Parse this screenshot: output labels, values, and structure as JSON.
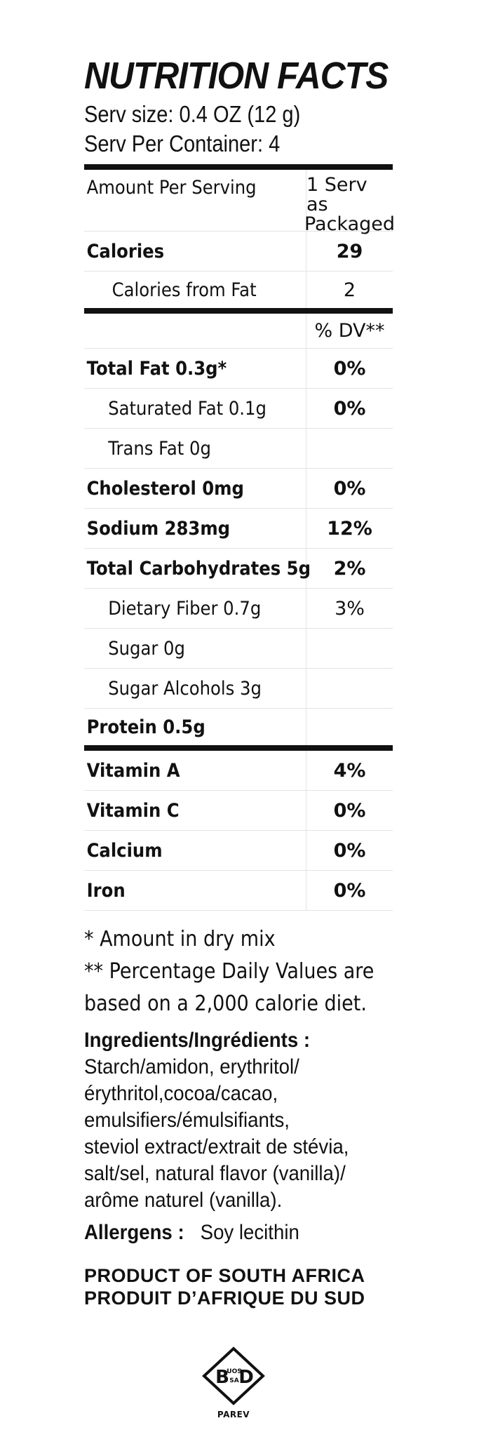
{
  "title": "NUTRITION FACTS",
  "serving_size": "Serv size:  0.4 OZ (12 g)",
  "servings_per_container": "Serv Per Container: 4",
  "header": {
    "amount_per_serving": "Amount Per Serving",
    "column_line1": "1 Serv as",
    "column_line2": "Packaged"
  },
  "calories": {
    "label": "Calories",
    "value": "29"
  },
  "calories_from_fat": {
    "label": "Calories from Fat",
    "value": "2"
  },
  "dv_header": "% DV**",
  "nutrients": [
    {
      "label": "Total Fat  0.3g*",
      "dv": "0%"
    },
    {
      "label": "Saturated Fat  0.1g",
      "dv": "0%"
    },
    {
      "label": "Trans Fat  0g",
      "dv": ""
    },
    {
      "label": "Cholesterol  0mg",
      "dv": "0%"
    },
    {
      "label": "Sodium  283mg",
      "dv": "12%"
    },
    {
      "label": "Total Carbohydrates 5g",
      "dv": "2%"
    },
    {
      "label": "Dietary Fiber  0.7g",
      "dv": "3%"
    },
    {
      "label": "Sugar  0g",
      "dv": ""
    },
    {
      "label": "Sugar Alcohols 3g",
      "dv": ""
    },
    {
      "label": "Protein  0.5g",
      "dv": ""
    }
  ],
  "vitamins": [
    {
      "label": "Vitamin A",
      "dv": "4%"
    },
    {
      "label": "Vitamin C",
      "dv": "0%"
    },
    {
      "label": "Calcium",
      "dv": "0%"
    },
    {
      "label": "Iron",
      "dv": "0%"
    }
  ],
  "footnotes": [
    "* Amount in dry mix",
    "** Percentage Daily Values are",
    "based on a 2,000 calorie diet."
  ],
  "ingredients": {
    "heading": "Ingredients/Ingrédients :",
    "lines": [
      "Starch/amidon, erythritol/",
      "érythritol,cocoa/cacao,",
      "emulsifiers/émulsifiants,",
      "steviol extract/extrait de stévia,",
      "salt/sel, natural flavor (vanilla)/",
      "arôme naturel (vanilla)."
    ]
  },
  "allergens": {
    "heading": "Allergens :",
    "value": "Soy lecithin"
  },
  "origin": [
    "PRODUCT OF SOUTH AFRICA",
    "PRODUIT D’AFRIQUE DU SUD"
  ],
  "certification": {
    "icon": "kosher-diamond-icon",
    "seal_text": {
      "left": "B",
      "top": "UOS",
      "bottom": "SA",
      "right": "D"
    },
    "caption": "PAREV"
  }
}
